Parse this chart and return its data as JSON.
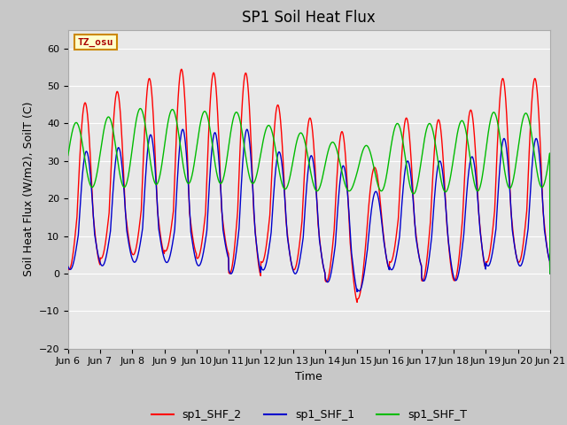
{
  "title": "SP1 Soil Heat Flux",
  "xlabel": "Time",
  "ylabel": "Soil Heat Flux (W/m2), SoilT (C)",
  "ylim": [
    -20,
    65
  ],
  "yticks": [
    -20,
    -10,
    0,
    10,
    20,
    30,
    40,
    50,
    60
  ],
  "xtick_labels": [
    "Jun 6",
    "Jun 7",
    "Jun 8",
    "Jun 9",
    "Jun 10",
    "Jun 11",
    "Jun 12",
    "Jun 13",
    "Jun 14",
    "Jun 15",
    "Jun 16",
    "Jun 17",
    "Jun 18",
    "Jun 19",
    "Jun 20",
    "Jun 21"
  ],
  "color_shf2": "#ff0000",
  "color_shf1": "#0000cc",
  "color_shft": "#00bb00",
  "legend_labels": [
    "sp1_SHF_2",
    "sp1_SHF_1",
    "sp1_SHF_T"
  ],
  "annotation_text": "TZ_osu",
  "annotation_bg": "#ffffcc",
  "annotation_border": "#cc8800",
  "fig_bg": "#c8c8c8",
  "plot_bg": "#e8e8e8",
  "title_fontsize": 12,
  "axis_label_fontsize": 9,
  "tick_fontsize": 8,
  "legend_fontsize": 9,
  "n_days": 15,
  "points_per_day": 144
}
